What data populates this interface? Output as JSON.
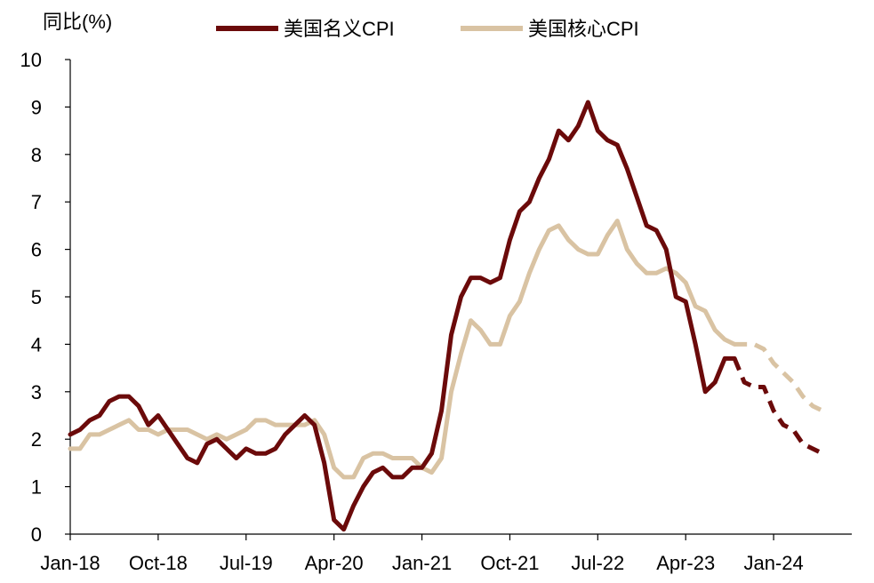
{
  "chart_data": {
    "type": "line",
    "title": "",
    "xlabel": "",
    "ylabel": "同比(%)",
    "ylim": [
      0,
      10
    ],
    "yticks": [
      0,
      1,
      2,
      3,
      4,
      5,
      6,
      7,
      8,
      9,
      10
    ],
    "x_start": "Jan-18",
    "x_end": "Sep-24",
    "xticks": [
      {
        "label": "Jan-18",
        "index": 0
      },
      {
        "label": "Oct-18",
        "index": 9
      },
      {
        "label": "Jul-19",
        "index": 18
      },
      {
        "label": "Apr-20",
        "index": 27
      },
      {
        "label": "Jan-21",
        "index": 36
      },
      {
        "label": "Oct-21",
        "index": 45
      },
      {
        "label": "Jul-22",
        "index": 54
      },
      {
        "label": "Apr-23",
        "index": 63
      },
      {
        "label": "Jan-24",
        "index": 72
      }
    ],
    "legend": {
      "placement": "top"
    },
    "series": [
      {
        "name": "美国名义CPI",
        "color": "#6b0a0a",
        "actual_start_index": 0,
        "actual": [
          2.1,
          2.2,
          2.4,
          2.5,
          2.8,
          2.9,
          2.9,
          2.7,
          2.3,
          2.5,
          2.2,
          1.9,
          1.6,
          1.5,
          1.9,
          2.0,
          1.8,
          1.6,
          1.8,
          1.7,
          1.7,
          1.8,
          2.1,
          2.3,
          2.5,
          2.3,
          1.5,
          0.3,
          0.1,
          0.6,
          1.0,
          1.3,
          1.4,
          1.2,
          1.2,
          1.4,
          1.4,
          1.7,
          2.6,
          4.2,
          5.0,
          5.4,
          5.4,
          5.3,
          5.4,
          6.2,
          6.8,
          7.0,
          7.5,
          7.9,
          8.5,
          8.3,
          8.6,
          9.1,
          8.5,
          8.3,
          8.2,
          7.7,
          7.1,
          6.5,
          6.4,
          6.0,
          5.0,
          4.9,
          4.0,
          3.0,
          3.2,
          3.7,
          3.7
        ],
        "forecast_start_index": 68,
        "forecast": [
          3.7,
          3.2,
          3.1,
          3.1,
          2.6,
          2.3,
          2.2,
          1.9,
          1.8,
          1.7
        ]
      },
      {
        "name": "美国核心CPI",
        "color": "#d9c3a3",
        "actual_start_index": 0,
        "actual": [
          1.8,
          1.8,
          2.1,
          2.1,
          2.2,
          2.3,
          2.4,
          2.2,
          2.2,
          2.1,
          2.2,
          2.2,
          2.2,
          2.1,
          2.0,
          2.1,
          2.0,
          2.1,
          2.2,
          2.4,
          2.4,
          2.3,
          2.3,
          2.3,
          2.3,
          2.4,
          2.1,
          1.4,
          1.2,
          1.2,
          1.6,
          1.7,
          1.7,
          1.6,
          1.6,
          1.6,
          1.4,
          1.3,
          1.6,
          3.0,
          3.8,
          4.5,
          4.3,
          4.0,
          4.0,
          4.6,
          4.9,
          5.5,
          6.0,
          6.4,
          6.5,
          6.2,
          6.0,
          5.9,
          5.9,
          6.3,
          6.6,
          6.0,
          5.7,
          5.5,
          5.5,
          5.6,
          5.5,
          5.3,
          4.8,
          4.7,
          4.3,
          4.1,
          4.0
        ],
        "forecast_start_index": 68,
        "forecast": [
          4.0,
          4.0,
          4.0,
          3.9,
          3.6,
          3.4,
          3.2,
          2.9,
          2.7,
          2.6
        ]
      }
    ]
  }
}
